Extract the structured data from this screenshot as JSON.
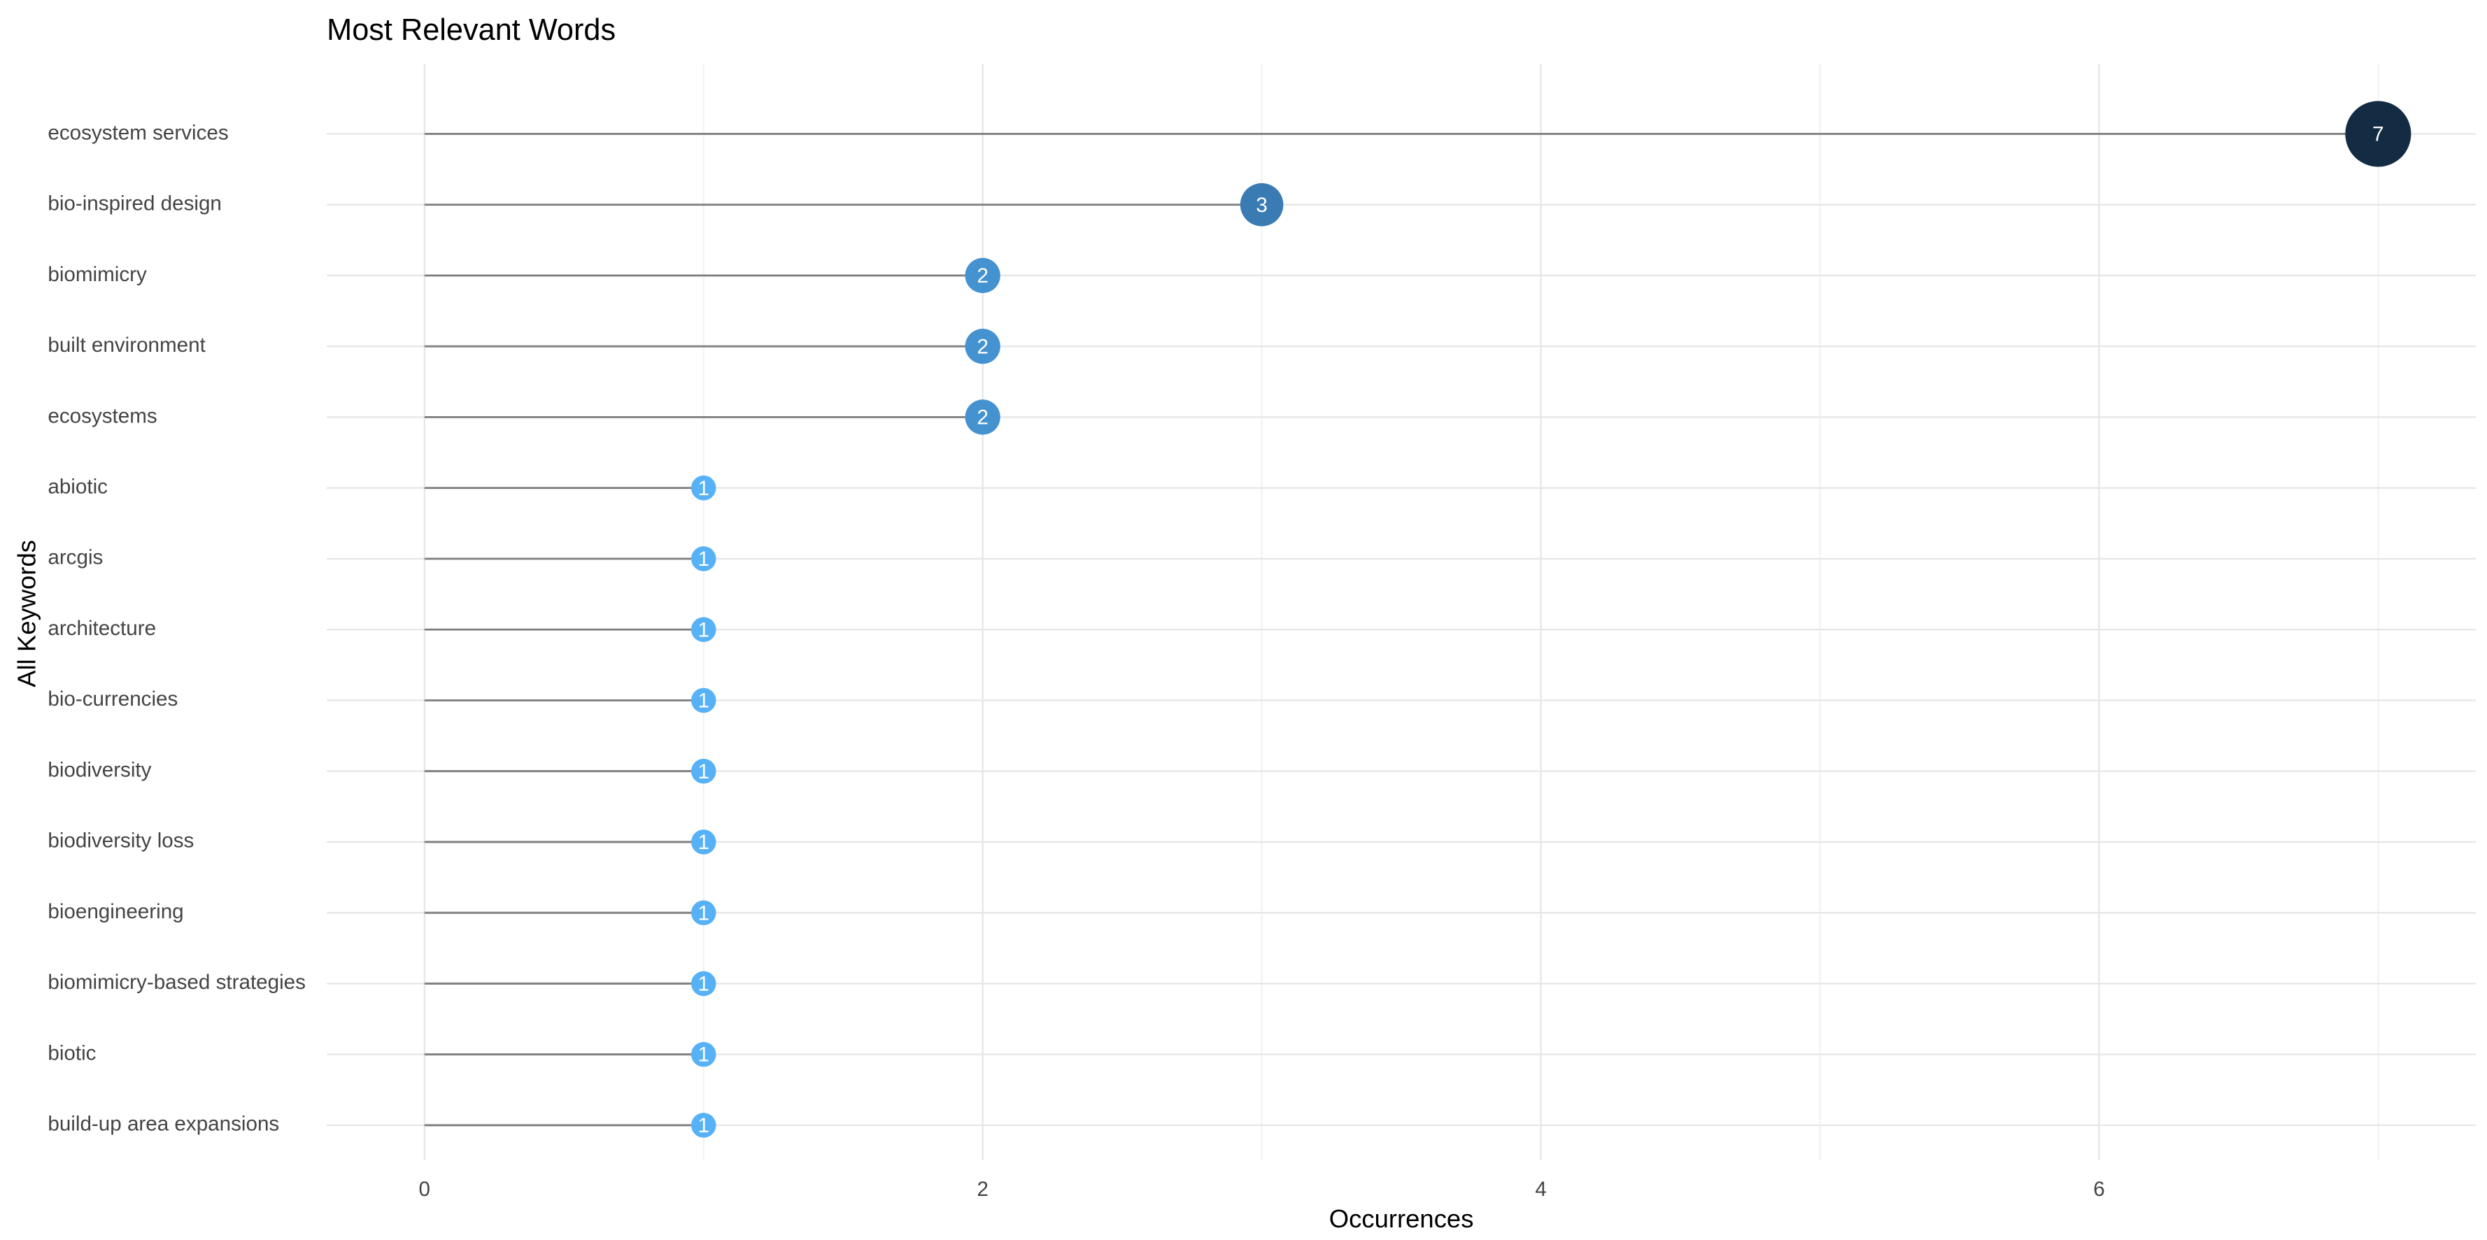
{
  "chart_data": {
    "type": "lollipop",
    "title": "Most Relevant Words",
    "x_label": "Occurrences",
    "y_label": "All Keywords",
    "categories": [
      "ecosystem services",
      "bio-inspired design",
      "biomimicry",
      "built environment",
      "ecosystems",
      "abiotic",
      "arcgis",
      "architecture",
      "bio-currencies",
      "biodiversity",
      "biodiversity loss",
      "bioengineering",
      "biomimicry-based strategies",
      "biotic",
      "build-up area expansions"
    ],
    "values": [
      7,
      3,
      2,
      2,
      2,
      1,
      1,
      1,
      1,
      1,
      1,
      1,
      1,
      1,
      1
    ],
    "colors": [
      "#132b43",
      "#3b7bb4",
      "#4592d0",
      "#4592d0",
      "#4592d0",
      "#56b1f7",
      "#56b1f7",
      "#56b1f7",
      "#56b1f7",
      "#56b1f7",
      "#56b1f7",
      "#56b1f7",
      "#56b1f7",
      "#56b1f7",
      "#56b1f7"
    ],
    "stem_color": "#808080",
    "xlim": [
      -0.35,
      7.35
    ],
    "xticks": [
      0,
      2,
      4,
      6
    ],
    "grid": true
  }
}
